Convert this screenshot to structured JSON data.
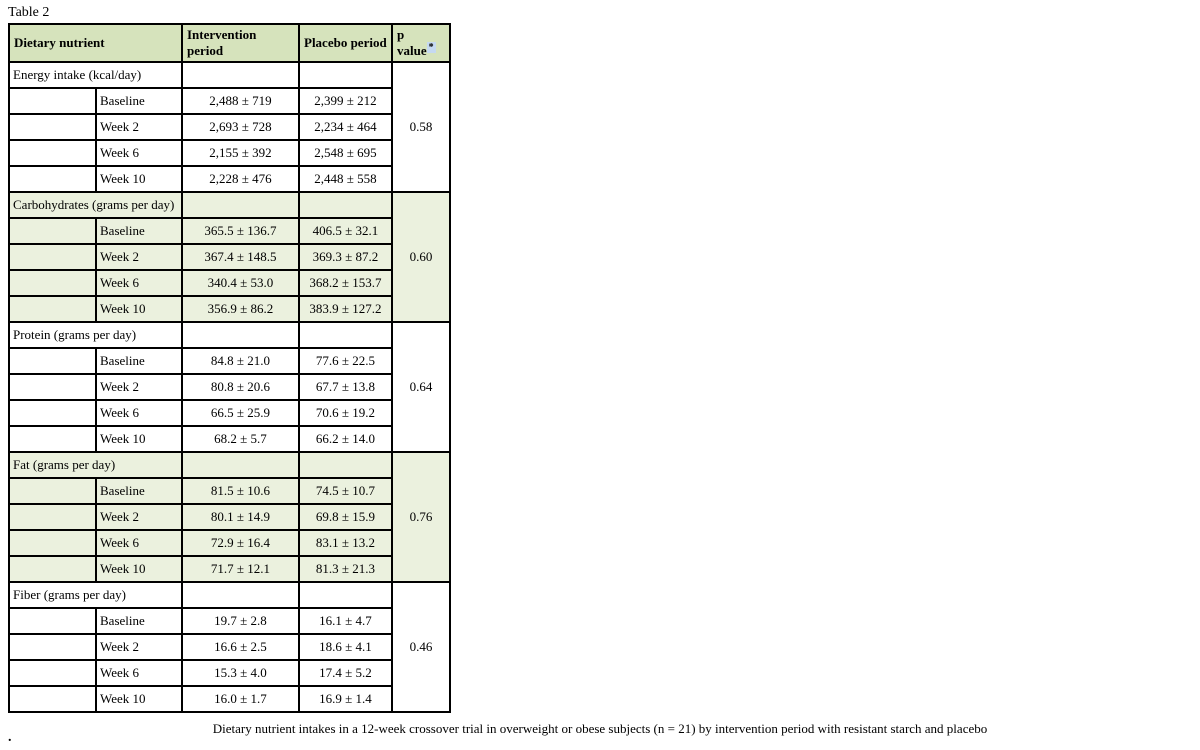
{
  "page": {
    "table_label": "Table 2",
    "trailing_period": "."
  },
  "colors": {
    "header_bg": "#d6e3bc",
    "section_bg": "#ebf1de",
    "asterisk_highlight": "#c5d9f1"
  },
  "table": {
    "headers": [
      "Dietary nutrient",
      "Intervention period",
      "Placebo period",
      "p value"
    ],
    "p_value_asterisk": "*",
    "sections": [
      {
        "nutrient": "Energy intake (kcal/day)",
        "p_value": "0.58",
        "shaded": false,
        "rows": [
          {
            "label": "Baseline",
            "intervention": "2,488 ± 719",
            "placebo": "2,399 ± 212"
          },
          {
            "label": "Week 2",
            "intervention": "2,693 ± 728",
            "placebo": "2,234 ± 464"
          },
          {
            "label": "Week 6",
            "intervention": "2,155 ± 392",
            "placebo": "2,548 ± 695"
          },
          {
            "label": "Week 10",
            "intervention": "2,228 ± 476",
            "placebo": "2,448 ± 558"
          }
        ]
      },
      {
        "nutrient": "Carbohydrates (grams per day)",
        "p_value": "0.60",
        "shaded": true,
        "rows": [
          {
            "label": "Baseline",
            "intervention": "365.5 ± 136.7",
            "placebo": "406.5 ± 32.1"
          },
          {
            "label": "Week 2",
            "intervention": "367.4 ± 148.5",
            "placebo": "369.3 ± 87.2"
          },
          {
            "label": "Week 6",
            "intervention": "340.4 ± 53.0",
            "placebo": "368.2 ± 153.7"
          },
          {
            "label": "Week 10",
            "intervention": "356.9 ± 86.2",
            "placebo": "383.9 ± 127.2"
          }
        ]
      },
      {
        "nutrient": "Protein (grams per day)",
        "p_value": "0.64",
        "shaded": false,
        "rows": [
          {
            "label": "Baseline",
            "intervention": "84.8 ± 21.0",
            "placebo": "77.6 ± 22.5"
          },
          {
            "label": "Week 2",
            "intervention": "80.8 ± 20.6",
            "placebo": "67.7 ± 13.8"
          },
          {
            "label": "Week 6",
            "intervention": "66.5 ± 25.9",
            "placebo": "70.6 ± 19.2"
          },
          {
            "label": "Week 10",
            "intervention": "68.2 ± 5.7",
            "placebo": "66.2 ± 14.0"
          }
        ]
      },
      {
        "nutrient": "Fat (grams per day)",
        "p_value": "0.76",
        "shaded": true,
        "rows": [
          {
            "label": "Baseline",
            "intervention": "81.5 ± 10.6",
            "placebo": "74.5 ± 10.7"
          },
          {
            "label": "Week 2",
            "intervention": "80.1 ± 14.9",
            "placebo": "69.8 ± 15.9"
          },
          {
            "label": "Week 6",
            "intervention": "72.9 ± 16.4",
            "placebo": "83.1 ± 13.2"
          },
          {
            "label": "Week 10",
            "intervention": "71.7 ± 12.1",
            "placebo": "81.3 ± 21.3"
          }
        ]
      },
      {
        "nutrient": "Fiber (grams per day)",
        "p_value": "0.46",
        "shaded": false,
        "rows": [
          {
            "label": "Baseline",
            "intervention": "19.7 ± 2.8",
            "placebo": "16.1 ± 4.7"
          },
          {
            "label": "Week 2",
            "intervention": "16.6 ± 2.5",
            "placebo": "18.6 ± 4.1"
          },
          {
            "label": "Week 6",
            "intervention": "15.3 ± 4.0",
            "placebo": "17.4 ± 5.2"
          },
          {
            "label": "Week 10",
            "intervention": "16.0 ± 1.7",
            "placebo": "16.9 ± 1.4"
          }
        ]
      }
    ],
    "caption": "Dietary nutrient intakes in a 12-week crossover trial in overweight or obese subjects (n = 21) by intervention period with resistant starch and placebo"
  }
}
